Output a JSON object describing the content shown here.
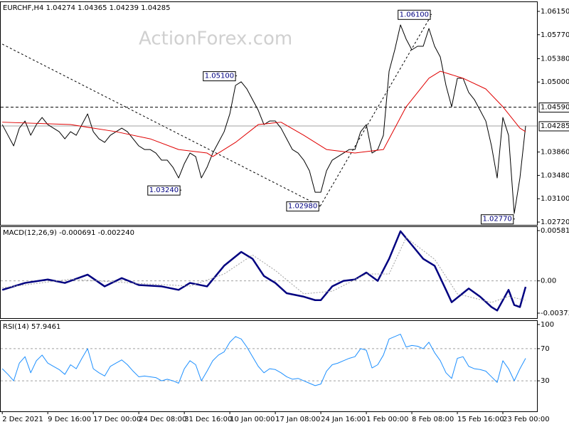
{
  "chart_data": [
    {
      "type": "line",
      "title": "EURCHF,H4  1.04274 1.04365 1.04239 1.04285",
      "watermark": "ActionForex.com",
      "xlim": [
        -0.4,
        94
      ],
      "ylim": [
        1.02674,
        1.06312
      ],
      "yticks": [
        {
          "value": 1.0615,
          "label": "1.06150"
        },
        {
          "value": 1.0577,
          "label": "1.05770"
        },
        {
          "value": 1.0538,
          "label": "1.05380"
        },
        {
          "value": 1.05,
          "label": "1.05000"
        },
        {
          "value": 1.0386,
          "label": "1.03860"
        },
        {
          "value": 1.0348,
          "label": "1.03480"
        },
        {
          "value": 1.031,
          "label": "1.03100"
        },
        {
          "value": 1.0272,
          "label": "1.02720"
        }
      ],
      "series": [
        {
          "color": "#000000",
          "width": 1,
          "values": [
            1.04307,
            1.04133,
            1.0396,
            1.04249,
            1.04365,
            1.04133,
            1.04307,
            1.04423,
            1.04307,
            1.04249,
            1.04191,
            1.04075,
            1.04191,
            1.04133,
            1.04307,
            1.04481,
            1.04191,
            1.04075,
            1.04017,
            1.04133,
            1.04191,
            1.04249,
            1.04191,
            1.04075,
            1.0396,
            1.03901,
            1.03901,
            1.03844,
            1.03728,
            1.03728,
            1.03612,
            1.03438,
            1.0367,
            1.03844,
            1.03786,
            1.03438,
            1.03612,
            1.03844,
            1.04017,
            1.04191,
            1.04481,
            1.04945,
            1.05003,
            1.04887,
            1.04713,
            1.04539,
            1.04307,
            1.04365,
            1.04365,
            1.04249,
            1.04075,
            1.03901,
            1.03844,
            1.03728,
            1.03554,
            1.03206,
            1.03206,
            1.03554,
            1.03728,
            1.03786,
            1.03844,
            1.03901,
            1.03901,
            1.04191,
            1.04307,
            1.03844,
            1.03901,
            1.04133,
            1.05176,
            1.05524,
            1.0593,
            1.05698,
            1.05524,
            1.05582,
            1.05582,
            1.05872,
            1.05582,
            1.05408,
            1.04945,
            1.04597,
            1.05061,
            1.05061,
            1.04829,
            1.04713,
            1.04539,
            1.04365,
            1.0396,
            1.03438,
            1.04423,
            1.04133,
            1.02859,
            1.03438,
            1.04285
          ]
        },
        {
          "color": "#e00000",
          "width": 1,
          "x": [
            0,
            12,
            20,
            26,
            31,
            36,
            37,
            41,
            45,
            49,
            53,
            57,
            62,
            67,
            71,
            75,
            77,
            81,
            85,
            88,
            91,
            92
          ],
          "values": [
            1.04346,
            1.04307,
            1.04191,
            1.04075,
            1.03901,
            1.03844,
            1.03786,
            1.04017,
            1.04307,
            1.04346,
            1.04133,
            1.03901,
            1.03844,
            1.03901,
            1.04597,
            1.05061,
            1.05176,
            1.05061,
            1.04887,
            1.04597,
            1.04249,
            1.04191
          ]
        }
      ],
      "levels": [
        {
          "value": 1.0459,
          "label": "1.04590",
          "style": "dashed",
          "color": "#000000"
        },
        {
          "value": 1.04285,
          "label": "1.04285",
          "style": "solid",
          "color": "#a0a0a0"
        }
      ],
      "trendlines": [
        {
          "x": [
            0,
            55.9
          ],
          "values": [
            1.05617,
            1.0298
          ]
        },
        {
          "x": [
            55.9,
            75.5
          ],
          "values": [
            1.0298,
            1.061
          ]
        }
      ],
      "annotations": [
        {
          "x": 75.5,
          "value": 1.061,
          "label": "1.06100"
        },
        {
          "x": 41.25,
          "value": 1.051,
          "label": "1.05100"
        },
        {
          "x": 31.5,
          "value": 1.0324,
          "label": "1.03240"
        },
        {
          "x": 55.9,
          "value": 1.0298,
          "label": "1.02980"
        },
        {
          "x": 90.1,
          "value": 1.0277,
          "label": "1.02770"
        }
      ]
    },
    {
      "type": "line",
      "title": "MACD(12,26,9) -0.000691 -0.002240",
      "xlim": [
        -0.4,
        94
      ],
      "ylim": [
        -0.003733,
        0.005818
      ],
      "edge_labels": true,
      "yticks": [
        {
          "value": 0,
          "label": "0.00"
        }
      ],
      "grid": true,
      "series": [
        {
          "color": "#000080",
          "width": 2.5,
          "x": [
            0,
            4,
            8,
            11,
            15,
            18,
            21,
            24,
            28,
            31,
            33,
            36,
            39,
            42,
            44,
            46,
            48,
            50,
            53,
            55,
            56,
            58,
            60,
            62,
            64,
            66,
            68,
            70,
            72,
            74,
            76,
            78,
            79,
            82,
            84,
            86,
            87,
            89,
            90,
            91,
            92
          ],
          "values": [
            -0.00104,
            -0.00024,
            0.00016,
            -0.00024,
            0.00072,
            -0.00064,
            0.00032,
            -0.00048,
            -0.00064,
            -0.00104,
            -0.00024,
            -0.00064,
            0.00175,
            0.00335,
            0.00255,
            0.00056,
            -0.00024,
            -0.00143,
            -0.00183,
            -0.00223,
            -0.00223,
            -0.00064,
            0,
            0.00016,
            0.00096,
            0,
            0.00255,
            0.00574,
            0.00415,
            0.00255,
            0.00175,
            -0.00104,
            -0.00247,
            -0.00088,
            -0.00183,
            -0.00303,
            -0.00343,
            -0.00104,
            -0.00279,
            -0.00303,
            -0.000691
          ]
        },
        {
          "color": "#a0a0a0",
          "width": 1,
          "dash": true,
          "x": [
            0,
            12,
            24,
            33,
            39,
            44,
            48,
            53,
            58,
            64,
            68,
            71,
            76,
            80,
            86,
            89,
            92
          ],
          "values": [
            -0.0008,
            0.0002,
            -0.0003,
            -0.0006,
            0.0008,
            0.003,
            0.0012,
            -0.0015,
            -0.0012,
            0.0008,
            0.0008,
            0.005,
            0.0025,
            -0.0015,
            -0.0025,
            -0.0018,
            -0.00224
          ]
        }
      ]
    },
    {
      "type": "line",
      "title": "RSI(14) 57.9461",
      "xlim": [
        -0.4,
        94
      ],
      "ylim": [
        0,
        100
      ],
      "yticks": [
        70,
        30
      ],
      "top_label": true,
      "grid": true,
      "xticks": [
        {
          "value": 0,
          "label": "2 Dec 2021"
        },
        {
          "value": 8,
          "label": "9 Dec 16:00"
        },
        {
          "value": 16,
          "label": "17 Dec 00:00"
        },
        {
          "value": 24,
          "label": "24 Dec 08:00"
        },
        {
          "value": 32,
          "label": "31 Dec 16:00"
        },
        {
          "value": 40,
          "label": "10 Jan 00:00"
        },
        {
          "value": 48,
          "label": "17 Jan 08:00"
        },
        {
          "value": 56,
          "label": "24 Jan 16:00"
        },
        {
          "value": 64,
          "label": "1 Feb 00:00"
        },
        {
          "value": 72,
          "label": "8 Feb 08:00"
        },
        {
          "value": 80,
          "label": "15 Feb 16:00"
        },
        {
          "value": 88,
          "label": "23 Feb 00:00"
        }
      ],
      "series": [
        {
          "color": "#1e90ff",
          "width": 1,
          "values": [
            45,
            38,
            30,
            52,
            60,
            40,
            55,
            62,
            52,
            48,
            44,
            38,
            50,
            45,
            58,
            70,
            45,
            40,
            36,
            48,
            52,
            56,
            50,
            42,
            35,
            36,
            35,
            34,
            30,
            32,
            30,
            27,
            45,
            55,
            50,
            30,
            42,
            55,
            62,
            66,
            78,
            85,
            82,
            72,
            60,
            48,
            40,
            45,
            44,
            40,
            35,
            32,
            33,
            30,
            27,
            24,
            26,
            42,
            50,
            52,
            55,
            58,
            60,
            70,
            68,
            46,
            50,
            62,
            82,
            85,
            88,
            72,
            74,
            73,
            70,
            78,
            65,
            55,
            40,
            33,
            58,
            60,
            48,
            45,
            44,
            42,
            35,
            28,
            55,
            45,
            30,
            45,
            57.9461
          ]
        }
      ]
    }
  ]
}
